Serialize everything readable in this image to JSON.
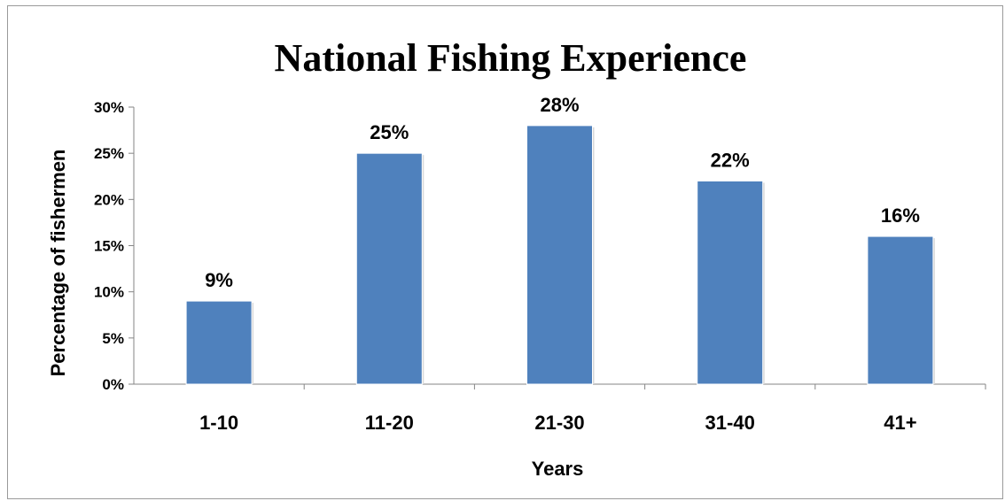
{
  "chart_data": {
    "type": "bar",
    "title": "National Fishing Experience",
    "xlabel": "Years",
    "ylabel": "Percentage of fishermen",
    "categories": [
      "1-10",
      "11-20",
      "21-30",
      "31-40",
      "41+"
    ],
    "values": [
      9,
      25,
      28,
      22,
      16
    ],
    "data_labels": [
      "9%",
      "25%",
      "28%",
      "22%",
      "16%"
    ],
    "ylim": [
      0,
      30
    ],
    "yticks": [
      0,
      5,
      10,
      15,
      20,
      25,
      30
    ],
    "ytick_labels": [
      "0%",
      "5%",
      "10%",
      "15%",
      "20%",
      "25%",
      "30%"
    ],
    "bar_color": "#4F81BD",
    "grid": false,
    "legend": "none"
  }
}
